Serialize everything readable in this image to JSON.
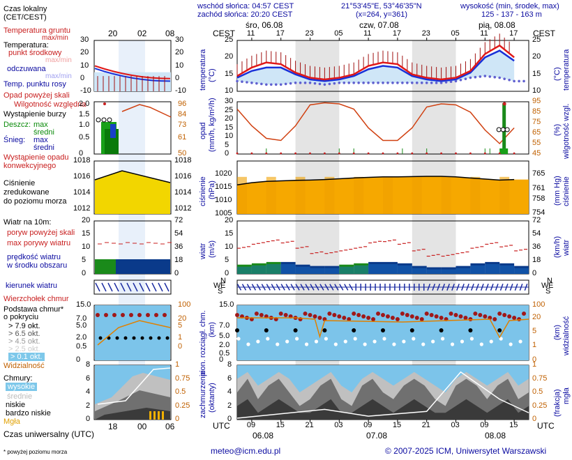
{
  "header": {
    "sunrise": "wschód słońca: 04:57 CEST",
    "sunset": "zachód słońca: 20:20 CEST",
    "coords": "21°53'45\"E, 53°46'35\"N",
    "grid": "(x=264, y=361)",
    "heights_label": "wysokość (min, środek, max)",
    "heights": "125 - 137 - 163 m",
    "days": [
      "śro, 06.08",
      "czw, 07.08",
      "pią, 08.08"
    ],
    "tz_label": "CEST",
    "hours_cest": [
      "11",
      "17",
      "23",
      "05",
      "11",
      "17",
      "23",
      "05",
      "11",
      "17"
    ],
    "hours_utc": [
      "09",
      "15",
      "21",
      "03",
      "09",
      "15",
      "21",
      "03",
      "09",
      "15"
    ],
    "dates_utc": [
      "06.08",
      "07.08",
      "08.08"
    ],
    "utc_label": "UTC"
  },
  "legend": {
    "local_time": "Czas lokalny",
    "local_time2": "(CET/CEST)",
    "local_hours": [
      "20",
      "02",
      "08"
    ],
    "utc_hours": [
      "18",
      "00",
      "06"
    ],
    "utc_label": "Czas uniwersalny (UTC)",
    "footnote": "* powyżej poziomu morza",
    "temp": {
      "ground": "Temperatura gruntu",
      "maxmin": "max/min",
      "temperature": "Temperatura:",
      "midpoint": "punkt środkowy",
      "maxmin2": "max/min",
      "feels": "odczuwana",
      "maxmin3": "max/min",
      "dew": "Temp. punktu rosy",
      "ticks": [
        "30",
        "20",
        "10",
        "0",
        "-10"
      ]
    },
    "precip": {
      "over_scale": "Opad powyżej skali",
      "humidity": "Wilgotność względna",
      "storm": "Wystąpienie burzy",
      "rain": "Deszcz:",
      "rain_max": "max",
      "rain_mid": "średni",
      "snow": "Śnieg:",
      "snow_max": "max",
      "snow_mid": "średni",
      "conv1": "Wystąpienie opadu",
      "conv2": "konwekcyjnego",
      "left_ticks": [
        "2.0",
        "1.5",
        "1.0",
        "0.5",
        "0"
      ],
      "right_ticks": [
        "96",
        "84",
        "73",
        "61",
        "50"
      ]
    },
    "pressure": {
      "l1": "Ciśnienie",
      "l2": "zredukowane",
      "l3": "do poziomu morza",
      "left_ticks": [
        "1018",
        "1016",
        "1014",
        "1012"
      ],
      "right_ticks": [
        "1018",
        "1016",
        "1014",
        "1012"
      ]
    },
    "wind": {
      "title": "Wiatr na 10m:",
      "gust_above": "poryw powyżej skali",
      "gust_max": "max porywy wiatru",
      "speed1": "prędkość wiatru",
      "speed2": "w środku obszaru",
      "left_ticks": [
        "20",
        "15",
        "10",
        "5",
        "0"
      ],
      "right_ticks": [
        "72",
        "54",
        "36",
        "18",
        "0"
      ]
    },
    "direction": {
      "label": "kierunek wiatru"
    },
    "clouds_base": {
      "top": "Wierzchołek chmur",
      "base1": "Podstawa chmur*",
      "base2": "o pokryciu",
      "o79": "> 7.9 okt.",
      "o65": "> 6.5 okt.",
      "o45": "> 4.5 okt.",
      "o25": "> 2.5 okt.",
      "o01": "> 0.1 okt.",
      "visibility": "Widzialność",
      "left_ticks": [
        "15.0",
        "7.0",
        "5.0",
        "2.0",
        "0.5",
        "0"
      ],
      "right_ticks": [
        "100",
        "20",
        "5",
        "1",
        "0"
      ]
    },
    "clouds": {
      "title": "Chmury:",
      "high": "wysokie",
      "mid": "średnie",
      "low": "niskie",
      "verylow": "bardzo niskie",
      "fog": "Mgła",
      "left_ticks": [
        "8",
        "6",
        "4",
        "2",
        "0"
      ],
      "right_ticks": [
        "1",
        "0.75",
        "0.5",
        "0.25",
        "0"
      ]
    }
  },
  "axis_labels": {
    "temp_l": "temperatura",
    "temp_l2": "(°C)",
    "temp_r": "(°C)",
    "temp_r2": "temperatura",
    "precip_l": "opad",
    "precip_l2": "(mm/h, kg/m²/h)",
    "precip_r": "(%)",
    "precip_r2": "wilgotność wzgl.",
    "pres_l": "ciśnienie",
    "pres_l2": "(hPa)",
    "pres_r": "(mm Hg)",
    "pres_r2": "ciśnienie",
    "wind_l": "wiatr",
    "wind_l2": "(m/s)",
    "wind_r": "(km/h)",
    "wind_r2": "wiatr",
    "cb_l": "pion. rozciągł. chm.",
    "cb_l2": "(km)",
    "cb_r": "(km)",
    "cb_r2": "widzialność",
    "cl_l": "zachmurzenie",
    "cl_l2": "(oktanty)",
    "cl_r": "(frakcja)",
    "cl_r2": "mgła"
  },
  "ticks": {
    "temp": [
      "25",
      "20",
      "15",
      "10"
    ],
    "precip_l": [
      "30",
      "25",
      "20",
      "15",
      "10",
      "5",
      "0"
    ],
    "precip_r": [
      "95",
      "85",
      "75",
      "65",
      "55",
      "45"
    ],
    "pres_l": [
      "1020",
      "1015",
      "1010",
      "1005"
    ],
    "pres_r": [
      "765",
      "761",
      "758",
      "754"
    ],
    "wind_l": [
      "20",
      "15",
      "10",
      "5",
      "0"
    ],
    "wind_r": [
      "72",
      "54",
      "36",
      "18",
      "0"
    ],
    "cb_l": [
      "15.0",
      "7.0",
      "5.0",
      "2.0",
      "0.5",
      "0"
    ],
    "cb_r": [
      "100",
      "20",
      "5",
      "1",
      "0"
    ],
    "cl_l": [
      "8",
      "6",
      "4",
      "2",
      "0"
    ],
    "cl_r": [
      "1",
      "0.75",
      "0.5",
      "0.25",
      "0"
    ],
    "dir_labels": [
      "N",
      "W",
      "E",
      "S"
    ]
  },
  "footer": {
    "email": "meteo@icm.edu.pl",
    "copyright": "© 2007-2025 ICM, Uniwersytet Warszawski"
  },
  "colors": {
    "temp_line": "#e01818",
    "feels_line": "#1830d8",
    "dew_dots": "#6060d0",
    "humidity": "#d04010",
    "pressure_fill": "#f6a800",
    "wind_bar": "#0a3a8a",
    "wind_green": "#1a8a1a",
    "cloud_bg": "#7cc4ea",
    "night_band": "#e4e4e4",
    "dir_arrow": "#1a2aa0"
  },
  "chart_data": {
    "type": "line",
    "x_hours_utc": [
      6,
      9,
      12,
      15,
      18,
      21,
      24,
      27,
      30,
      33,
      36,
      39,
      42,
      45,
      48,
      51,
      54,
      57,
      60,
      63
    ],
    "series": [
      {
        "name": "Temperatura",
        "unit": "°C",
        "values": [
          14.5,
          17,
          18.5,
          18,
          15.5,
          14,
          13.5,
          14,
          15,
          17.5,
          18.5,
          18,
          15,
          14,
          13.5,
          14,
          16,
          21,
          23.5,
          20
        ]
      },
      {
        "name": "odczuwana",
        "unit": "°C",
        "values": [
          14,
          16,
          17,
          17,
          15,
          13.5,
          13,
          13.5,
          14.5,
          16.5,
          17.5,
          17,
          14.5,
          13.5,
          13,
          13.5,
          15.5,
          20,
          22,
          19
        ]
      },
      {
        "name": "Temp. punktu rosy",
        "unit": "°C",
        "values": [
          13,
          12.5,
          12,
          12,
          12.5,
          12.5,
          12,
          12.5,
          12.5,
          12.5,
          12.5,
          12.5,
          12.5,
          12.5,
          12.5,
          13,
          14,
          14.5,
          14,
          13
        ]
      },
      {
        "name": "Wilgotność względna",
        "unit": "%",
        "values": [
          88,
          72,
          60,
          58,
          72,
          92,
          94,
          93,
          88,
          70,
          58,
          58,
          70,
          90,
          93,
          92,
          85,
          68,
          55,
          70
        ]
      },
      {
        "name": "Ciśnienie",
        "unit": "hPa",
        "values": [
          1016,
          1016.8,
          1017.3,
          1017.5,
          1017.7,
          1017.8,
          1018,
          1018.3,
          1018.6,
          1018.8,
          1019,
          1019,
          1019.1,
          1019.2,
          1019.2,
          1019,
          1018.6,
          1018.2,
          1017.8,
          1018
        ]
      },
      {
        "name": "prędkość wiatru",
        "unit": "m/s",
        "values": [
          3.5,
          4,
          4.5,
          4.5,
          3.5,
          3,
          3,
          3.5,
          4,
          4.5,
          4.5,
          4,
          3,
          2.5,
          2.5,
          3,
          4,
          4.5,
          4,
          3
        ]
      },
      {
        "name": "max porywy wiatru",
        "unit": "m/s",
        "values": [
          10,
          11.5,
          12.5,
          12,
          10,
          8,
          8,
          9,
          10,
          12,
          12.5,
          11.5,
          9,
          7,
          7,
          8,
          10,
          11.5,
          10.5,
          9
        ]
      }
    ],
    "precip_events": [
      {
        "x": 61,
        "value": 30
      }
    ],
    "ylim_temp": [
      10,
      25
    ],
    "ylim_pressure": [
      1005,
      1025
    ],
    "ylim_wind": [
      0,
      20
    ],
    "ylim_humidity": [
      45,
      95
    ]
  }
}
